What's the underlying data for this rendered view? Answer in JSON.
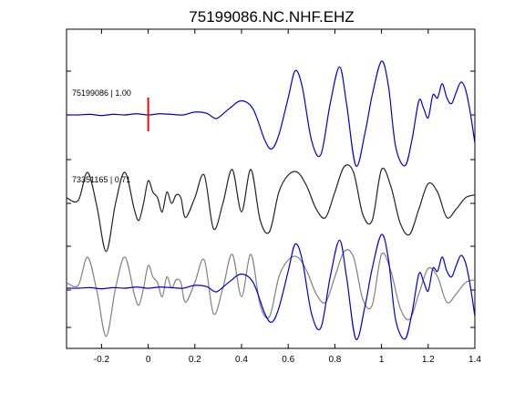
{
  "chart_data": {
    "type": "line",
    "title": "75199086.NC.NHF.EHZ",
    "xlabel": "",
    "ylabel": "",
    "xlim": [
      -0.35,
      1.4
    ],
    "x_ticks": [
      -0.2,
      0,
      0.2,
      0.4,
      0.6,
      0.8,
      1.0,
      1.2,
      1.4
    ],
    "x_tick_labels": [
      "-0.2",
      "0",
      "0.2",
      "0.4",
      "0.6",
      "0.8",
      "1",
      "1.2",
      "1.4"
    ],
    "grid": false,
    "marker": {
      "x": 0,
      "color": "#ff0000"
    },
    "traces": [
      {
        "label": "75199086 | 1.00",
        "color": "#0000cc",
        "x": [
          -0.35,
          -0.3,
          -0.25,
          -0.2,
          -0.15,
          -0.1,
          -0.05,
          0,
          0.05,
          0.1,
          0.15,
          0.2,
          0.25,
          0.28,
          0.3,
          0.35,
          0.4,
          0.45,
          0.5,
          0.53,
          0.56,
          0.6,
          0.63,
          0.66,
          0.7,
          0.74,
          0.78,
          0.82,
          0.85,
          0.89,
          0.93,
          0.96,
          1.0,
          1.03,
          1.06,
          1.1,
          1.13,
          1.16,
          1.18,
          1.2,
          1.22,
          1.24,
          1.26,
          1.28,
          1.3,
          1.32,
          1.34,
          1.36,
          1.38,
          1.4
        ],
        "y": [
          0,
          0,
          0.01,
          -0.01,
          0.01,
          0,
          0.02,
          0,
          0.02,
          0.01,
          0,
          0.05,
          0.03,
          -0.05,
          -0.05,
          0.12,
          0.25,
          0.1,
          -0.45,
          -0.6,
          -0.35,
          0.3,
          0.78,
          0.5,
          -0.45,
          -0.7,
          0.2,
          0.85,
          0.2,
          -0.9,
          -0.3,
          0.35,
          0.95,
          0.5,
          -0.55,
          -0.9,
          -0.45,
          0.25,
          0.12,
          -0.05,
          0.35,
          0.3,
          0.55,
          0.3,
          0.2,
          0.4,
          0.58,
          0.45,
          0.05,
          -0.5
        ]
      },
      {
        "label": "73351165 | 0.71",
        "color": "#222222",
        "x": [
          -0.35,
          -0.3,
          -0.26,
          -0.22,
          -0.18,
          -0.14,
          -0.1,
          -0.06,
          -0.04,
          -0.02,
          0,
          0.02,
          0.04,
          0.06,
          0.08,
          0.1,
          0.12,
          0.14,
          0.16,
          0.2,
          0.24,
          0.28,
          0.32,
          0.36,
          0.4,
          0.44,
          0.48,
          0.52,
          0.56,
          0.6,
          0.64,
          0.68,
          0.72,
          0.76,
          0.8,
          0.84,
          0.88,
          0.92,
          0.96,
          1.0,
          1.04,
          1.08,
          1.12,
          1.16,
          1.2,
          1.24,
          1.28,
          1.32,
          1.36,
          1.4
        ],
        "y": [
          0.1,
          0.05,
          0.55,
          -0.05,
          -0.85,
          0.0,
          0.55,
          -0.1,
          -0.3,
          0.0,
          0.4,
          0.2,
          0.1,
          -0.15,
          0.2,
          0.0,
          0.15,
          0.1,
          -0.25,
          0.1,
          0.5,
          -0.45,
          0.0,
          0.6,
          -0.15,
          0.6,
          -0.3,
          -0.5,
          0.2,
          0.5,
          0.55,
          0.3,
          -0.1,
          -0.25,
          0.2,
          0.65,
          0.55,
          -0.2,
          -0.3,
          0.6,
          0.3,
          -0.35,
          -0.55,
          -0.1,
          0.35,
          0.2,
          -0.25,
          -0.1,
          0.1,
          0.15
        ]
      }
    ],
    "overlay": {
      "series": [
        {
          "ref": 0,
          "color": "#0000cc"
        },
        {
          "ref": 1,
          "color": "#808080"
        }
      ]
    }
  }
}
